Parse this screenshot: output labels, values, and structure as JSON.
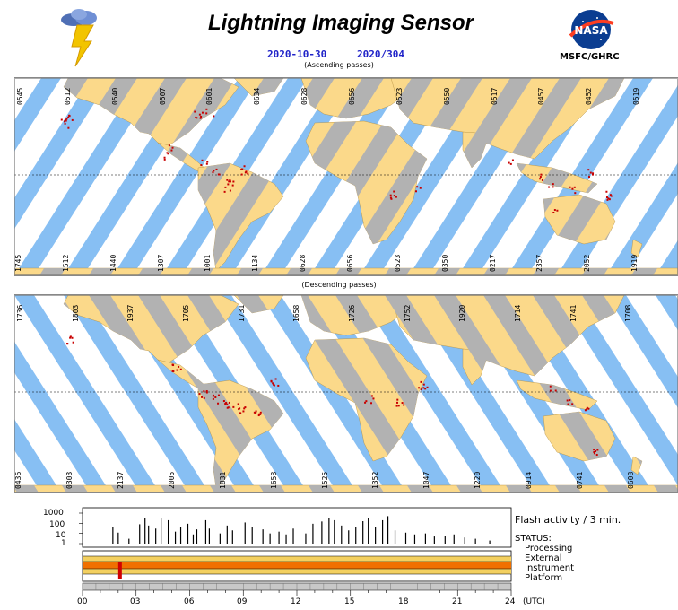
{
  "header": {
    "title": "Lightning Imaging Sensor",
    "date": "2020-10-30",
    "doy": "2020/304",
    "org": "MSFC/GHRC",
    "nasa_logo_text": "NASA"
  },
  "ascending": {
    "caption": "(Ascending passes)",
    "top_labels": [
      "0545",
      "0512",
      "0540",
      "0507",
      "0601",
      "0634",
      "0628",
      "0656",
      "0523",
      "0550",
      "0517",
      "0457",
      "0452",
      "0519"
    ],
    "bottom_labels": [
      "1745",
      "1512",
      "1440",
      "1307",
      "1001",
      "1134",
      "0628",
      "0656",
      "0523",
      "0350",
      "0217",
      "2357",
      "2052",
      "1919"
    ]
  },
  "descending": {
    "caption": "(Descending passes)",
    "top_labels": [
      "1736",
      "1803",
      "1937",
      "1705",
      "1731",
      "1658",
      "1726",
      "1752",
      "1920",
      "1714",
      "1741",
      "1708"
    ],
    "bottom_labels": [
      "0436",
      "0303",
      "2137",
      "2005",
      "1831",
      "1658",
      "1525",
      "1352",
      "1047",
      "1220",
      "0914",
      "0741",
      "0608"
    ]
  },
  "timeline": {
    "y_labels": [
      "1000",
      "100",
      "10",
      "1"
    ],
    "flash_label": "Flash activity / 3 min.",
    "status_label": "STATUS:",
    "status_items": [
      "Processing",
      "External",
      "Instrument",
      "Platform"
    ],
    "x_ticks": [
      "00",
      "03",
      "06",
      "09",
      "12",
      "15",
      "18",
      "21",
      "24"
    ],
    "x_unit": "(UTC)",
    "flash_hours": [
      1.7,
      2.0,
      2.6,
      3.2,
      3.5,
      3.7,
      4.1,
      4.4,
      4.8,
      5.2,
      5.5,
      5.9,
      6.2,
      6.4,
      6.9,
      7.1,
      7.7,
      8.1,
      8.4,
      9.1,
      9.5,
      10.1,
      10.5,
      11.0,
      11.4,
      11.8,
      12.5,
      12.9,
      13.4,
      13.8,
      14.1,
      14.5,
      14.9,
      15.3,
      15.7,
      16.0,
      16.4,
      16.8,
      17.1,
      17.5,
      18.1,
      18.6,
      19.2,
      19.7,
      20.3,
      20.8,
      21.4,
      22.0,
      22.8
    ],
    "flash_counts": [
      40,
      12,
      3,
      80,
      350,
      60,
      30,
      300,
      200,
      15,
      45,
      90,
      8,
      25,
      200,
      30,
      10,
      60,
      20,
      120,
      40,
      25,
      10,
      15,
      8,
      30,
      10,
      90,
      150,
      300,
      200,
      60,
      20,
      40,
      160,
      300,
      40,
      200,
      500,
      20,
      12,
      8,
      10,
      5,
      6,
      8,
      4,
      3,
      2
    ]
  },
  "colors": {
    "land": "#fbd98a",
    "land_shadow": "#b2b2b2",
    "swath": "#87bff3",
    "flash": "#c80000",
    "title_blue": "#1f22c8"
  }
}
